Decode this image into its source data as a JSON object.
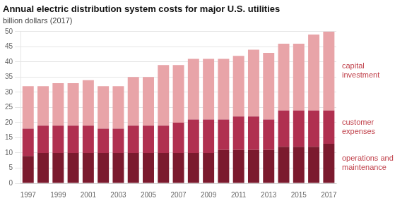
{
  "chart_data": {
    "type": "bar",
    "title": "Annual electric distribution system costs for major U.S. utilities",
    "subtitle": "billion dollars (2017)",
    "categories": [
      "1997",
      null,
      "1999",
      null,
      "2001",
      null,
      "2003",
      null,
      "2005",
      null,
      "2007",
      null,
      "2009",
      null,
      "2011",
      null,
      "2013",
      null,
      "2015",
      null,
      "2017"
    ],
    "series": [
      {
        "name": "operations and\nmaintenance",
        "color": "#7b1a2e",
        "values": [
          9,
          10,
          10,
          10,
          10,
          10,
          10,
          10,
          10,
          10,
          10,
          10,
          10,
          11,
          11,
          11,
          11,
          12,
          12,
          12,
          13
        ]
      },
      {
        "name": "customer\nexpenses",
        "color": "#b03050",
        "values": [
          9,
          9,
          9,
          9,
          9,
          8,
          8,
          9,
          9,
          9,
          10,
          11,
          11,
          10,
          11,
          11,
          10,
          12,
          12,
          12,
          11
        ]
      },
      {
        "name": "capital\ninvestment",
        "color": "#e8a4a8",
        "values": [
          14,
          13,
          14,
          14,
          15,
          14,
          14,
          16,
          16,
          20,
          19,
          20,
          20,
          20,
          20,
          22,
          22,
          22,
          22,
          25,
          26
        ]
      }
    ],
    "stacked": true,
    "ylim": [
      0,
      50
    ],
    "yticks": [
      0,
      5,
      10,
      15,
      20,
      25,
      30,
      35,
      40,
      45,
      50
    ],
    "grid": true,
    "legend": "right"
  }
}
